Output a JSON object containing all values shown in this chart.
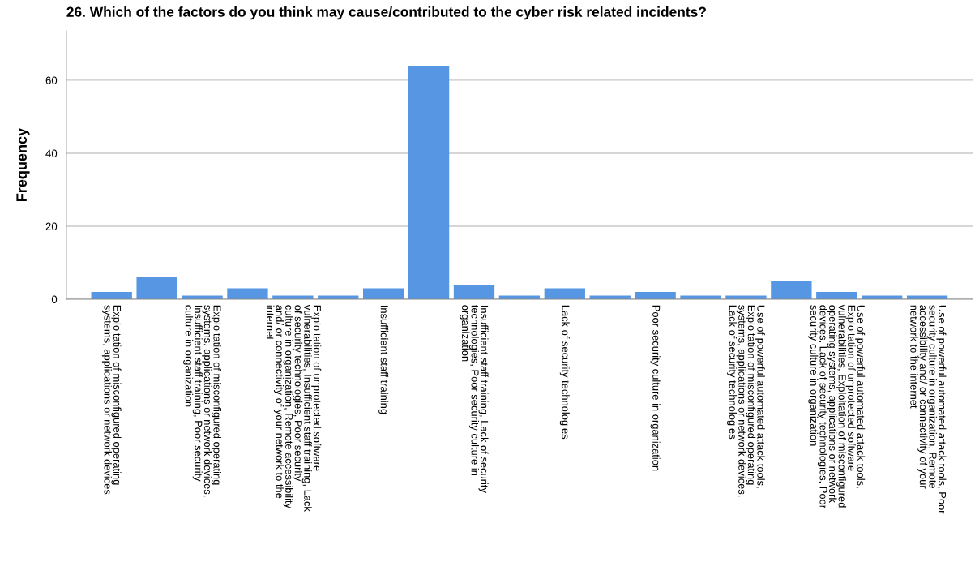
{
  "chart_data": {
    "type": "bar",
    "title": "26. Which of the factors do you think may cause/contributed to the cyber risk related incidents?",
    "ylabel": "Frequency",
    "categories": [
      "Exploitation of misconfigured operating\nsystems, applications or network devices",
      null,
      "Exploitation of misconfigured operating\nsystems, applications or network devices,\nInsufficient staff training, Poor security\nculture in organization",
      null,
      "Exploitation of unprotected software\nvulnerabilities, Insufficient staff training, Lack\nof security technologies, Poor security\nculture in organization, Remote accessibility\nand/ or connectivity of your network to the\ninternet",
      null,
      "Insufficient staff training",
      null,
      "Insufficient staff training, Lack of security\ntechnologies, Poor security culture in\norganization",
      null,
      "Lack of security technologies",
      null,
      "Poor security culture in organization",
      null,
      "Use of powerful automated attack tools,\nExploitation of misconfigured operating\nsystems, applications or network devices,\nLack of security technologies",
      null,
      "Use of powerful automated attack tools,\nExploitation of unprotected software\nvulnerabilities, Exploitation of misconfigured\noperating systems, applications or network\ndevices, Lack of security technologies, Poor\nsecurity culture in organization",
      null,
      "Use of powerful automated attack tools, Poor\nsecurity culture in organization, Remote\naccessibility and/ or connectivity of your\nnetwork to the internet"
    ],
    "values": [
      2,
      6,
      1,
      3,
      1,
      1,
      3,
      64,
      4,
      1,
      3,
      1,
      2,
      1,
      1,
      5,
      2,
      1,
      1
    ],
    "color": "#5696e3",
    "ylim": [
      0,
      73.5
    ],
    "yticks": [
      0,
      20,
      40,
      60
    ],
    "grid": "y",
    "legend": false
  }
}
